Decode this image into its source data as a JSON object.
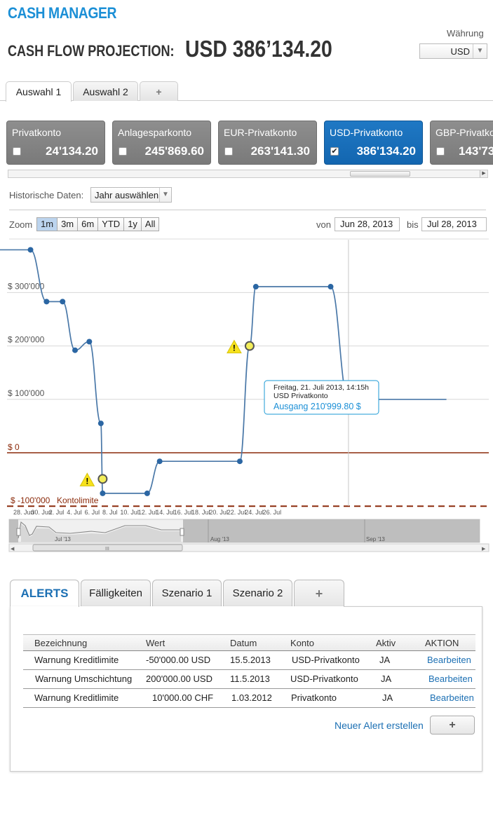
{
  "header": {
    "app_title": "CASH MANAGER",
    "projection_label": "CASH FLOW PROJECTION:",
    "projection_amount": "USD 386’134.20"
  },
  "currency": {
    "label": "Währung",
    "value": "USD"
  },
  "top_tabs": [
    {
      "label": "Auswahl 1",
      "active": true
    },
    {
      "label": "Auswahl 2",
      "active": false
    },
    {
      "label": "+",
      "active": false
    }
  ],
  "accounts": [
    {
      "name": "Privatkonto",
      "amount": "24'134.20",
      "checked": false,
      "active": false
    },
    {
      "name": "Anlagesparkonto",
      "amount": "245'869.60",
      "checked": false,
      "active": false
    },
    {
      "name": "EUR-Privatkonto",
      "amount": "263'141.30",
      "checked": false,
      "active": false
    },
    {
      "name": "USD-Privatkonto",
      "amount": "386'134.20",
      "checked": true,
      "active": true
    },
    {
      "name": "GBP-Privatko",
      "amount": "143'73",
      "checked": false,
      "active": false
    }
  ],
  "historic": {
    "label": "Historische Daten:",
    "select_value": "Jahr auswählen"
  },
  "zoom": {
    "label": "Zoom",
    "options": [
      "1m",
      "3m",
      "6m",
      "YTD",
      "1y",
      "All"
    ],
    "active": "1m"
  },
  "range": {
    "from_label": "von",
    "from": "Jun 28, 2013",
    "to_label": "bis",
    "to": "Jul 28, 2013"
  },
  "chart_data": {
    "type": "line",
    "title": "",
    "xlabel": "",
    "ylabel": "",
    "ylim": [
      -100000,
      380000
    ],
    "y_ticks": [
      "$ 300'000",
      "$ 200'000",
      "$ 100'000",
      "$ 0",
      "$ -100'000"
    ],
    "y_tick_values": [
      300000,
      200000,
      100000,
      0,
      -100000
    ],
    "x_ticks": [
      "28. Jun",
      "30. Jun",
      "2. Jul",
      "4. Jul",
      "6. Jul",
      "8. Jul",
      "10. Jul",
      "12. Jul",
      "14. Jul",
      "16. Jul",
      "18. Jul",
      "20. Jul",
      "22. Jul",
      "24. Jul",
      "26. Jul"
    ],
    "x_tick_days": [
      0,
      2,
      4,
      6,
      8,
      10,
      12,
      14,
      16,
      18,
      20,
      22,
      24,
      26,
      28
    ],
    "series": [
      {
        "points": [
          {
            "day": -5,
            "y": 380000
          },
          {
            "day": 1.3,
            "y": 380000
          },
          {
            "day": 3.1,
            "y": 283000
          },
          {
            "day": 4.9,
            "y": 283000
          },
          {
            "day": 6.3,
            "y": 192000
          },
          {
            "day": 7.9,
            "y": 208000
          },
          {
            "day": 9.2,
            "y": 55000
          },
          {
            "day": 9.4,
            "y": -76000
          },
          {
            "day": 14.4,
            "y": -76000
          },
          {
            "day": 15.8,
            "y": -16000
          },
          {
            "day": 24.8,
            "y": -16000
          },
          {
            "day": 25.9,
            "y": 200000
          },
          {
            "day": 26.6,
            "y": 311000
          },
          {
            "day": 35.0,
            "y": 311000
          },
          {
            "day": 37.0,
            "y": 100000
          },
          {
            "day": 48.0,
            "y": 100000
          }
        ]
      }
    ],
    "warnings": [
      {
        "day": 9.4,
        "y": -49000
      },
      {
        "day": 25.9,
        "y": 200000
      }
    ],
    "limit": {
      "label": "Kontolimite",
      "value": -100000
    },
    "crosshair_day": 37.0,
    "tooltip": {
      "date": "Freitag, 21. Juli 2013, 14:15h",
      "account": "USD Privatkonto",
      "value": "Ausgang 210'999.80 $"
    },
    "navigator_labels": [
      "Jul '13",
      "Aug '13",
      "Sep '13"
    ]
  },
  "colors": {
    "accent": "#1b8fd6",
    "active_account": "#1366b0",
    "line": "#4a78a8",
    "limit": "#8b2a0a"
  },
  "bottom_tabs": [
    {
      "label": "ALERTS",
      "active": true
    },
    {
      "label": "Fälligkeiten",
      "active": false
    },
    {
      "label": "Szenario 1",
      "active": false
    },
    {
      "label": "Szenario 2",
      "active": false
    },
    {
      "label": "+",
      "active": false
    }
  ],
  "alerts": {
    "columns": [
      "Bezeichnung",
      "Wert",
      "Datum",
      "Konto",
      "Aktiv",
      "AKTION"
    ],
    "rows": [
      {
        "name": "Warnung Kreditlimite",
        "value": "-50'000.00 USD",
        "date": "15.5.2013",
        "account": "USD-Privatkonto",
        "active": "JA",
        "action": "Bearbeiten"
      },
      {
        "name": "Warnung Umschichtung",
        "value": "200'000.00 USD",
        "date": "11.5.2013",
        "account": "USD-Privatkonto",
        "active": "JA",
        "action": "Bearbeiten"
      },
      {
        "name": "Warnung Kreditlimite",
        "value": "10'000.00 CHF",
        "date": "1.03.2012",
        "account": "Privatkonto",
        "active": "JA",
        "action": "Bearbeiten"
      }
    ],
    "new_alert_label": "Neuer Alert erstellen",
    "new_alert_button": "+"
  }
}
